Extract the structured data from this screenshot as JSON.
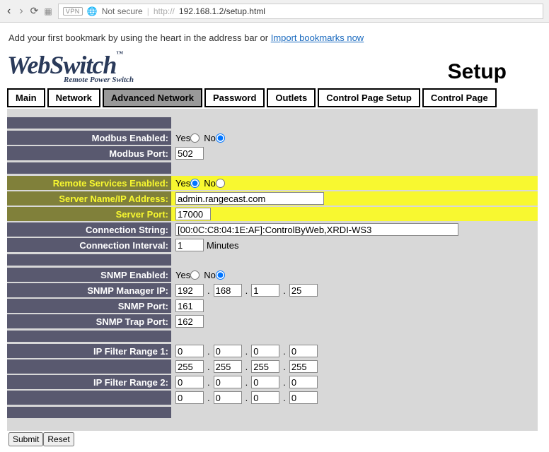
{
  "browser": {
    "security": "Not secure",
    "url_prefix": "http://",
    "url": "192.168.1.2/setup.html",
    "vpn": "VPN"
  },
  "bookmark": {
    "text": "Add your first bookmark by using the heart in the address bar or ",
    "link": "Import bookmarks now"
  },
  "logo": {
    "part1": "Web",
    "part2": "Switch",
    "tm": "™",
    "sub": "Remote Power Switch"
  },
  "title": "Setup",
  "tabs": {
    "main": "Main",
    "network": "Network",
    "adv_network": "Advanced Network",
    "password": "Password",
    "outlets": "Outlets",
    "control_setup": "Control Page Setup",
    "control": "Control Page"
  },
  "labels": {
    "modbus_en": "Modbus Enabled:",
    "modbus_port": "Modbus Port:",
    "remote_en": "Remote Services Enabled:",
    "server_name": "Server Name/IP Address:",
    "server_port": "Server Port:",
    "conn_string": "Connection String:",
    "conn_interval": "Connection Interval:",
    "snmp_en": "SNMP Enabled:",
    "snmp_mgr": "SNMP Manager IP:",
    "snmp_port": "SNMP Port:",
    "snmp_trap": "SNMP Trap Port:",
    "ip_filter1": "IP Filter Range 1:",
    "ip_filter2": "IP Filter Range 2:",
    "yes": "Yes",
    "no": "No",
    "minutes": "Minutes"
  },
  "values": {
    "modbus_port": "502",
    "server_name": "admin.rangecast.com",
    "server_port": "17000",
    "conn_string": "[00:0C:C8:04:1E:AF]:ControlByWeb,XRDI-WS3",
    "conn_interval": "1",
    "snmp_ip": {
      "a": "192",
      "b": "168",
      "c": "1",
      "d": "25"
    },
    "snmp_port": "161",
    "snmp_trap": "162",
    "filter1_lo": {
      "a": "0",
      "b": "0",
      "c": "0",
      "d": "0"
    },
    "filter1_hi": {
      "a": "255",
      "b": "255",
      "c": "255",
      "d": "255"
    },
    "filter2_lo": {
      "a": "0",
      "b": "0",
      "c": "0",
      "d": "0"
    },
    "filter2_hi": {
      "a": "0",
      "b": "0",
      "c": "0",
      "d": "0"
    }
  },
  "buttons": {
    "submit": "Submit",
    "reset": "Reset"
  },
  "colors": {
    "label_bg": "#59596f",
    "highlight_bg": "#f8f830",
    "highlight_label_bg": "#80803a",
    "form_bg": "#d8d8d8"
  }
}
